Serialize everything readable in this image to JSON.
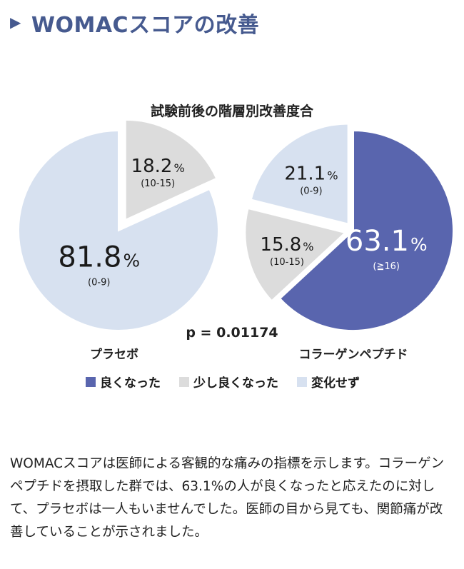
{
  "header": {
    "arrow": "▶",
    "title": "WOMACスコアの改善"
  },
  "chart_data": [
    {
      "type": "pie",
      "group_title": "試験前後の階層別改善度合",
      "p_value": "p = 0.01174",
      "charts": [
        {
          "name": "プラセボ",
          "slices": [
            {
              "category": "少し良くなった",
              "value": 18.2,
              "value_label": "18.2",
              "unit": "%",
              "range": "(10-15)",
              "exploded": true
            },
            {
              "category": "変化せず",
              "value": 81.8,
              "value_label": "81.8",
              "unit": "%",
              "range": "(0-9)",
              "exploded": false
            }
          ]
        },
        {
          "name": "コラーゲンペプチド",
          "slices": [
            {
              "category": "良くなった",
              "value": 63.1,
              "value_label": "63.1",
              "unit": "%",
              "range": "(≧16)",
              "exploded": false
            },
            {
              "category": "少し良くなった",
              "value": 15.8,
              "value_label": "15.8",
              "unit": "%",
              "range": "(10-15)",
              "exploded": true
            },
            {
              "category": "変化せず",
              "value": 21.1,
              "value_label": "21.1",
              "unit": "%",
              "range": "(0-9)",
              "exploded": true
            }
          ]
        }
      ]
    }
  ],
  "legend": [
    {
      "label": "良くなった",
      "color": "#5965ae"
    },
    {
      "label": "少し良くなった",
      "color": "#dcdcdc"
    },
    {
      "label": "変化せず",
      "color": "#d7e1f0"
    }
  ],
  "colors": {
    "良くなった": "#5965ae",
    "少し良くなった": "#dcdcdc",
    "変化せず": "#d7e1f0"
  },
  "paragraph": "WOMACスコアは医師による客観的な痛みの指標を示します。コラーゲンペプチドを摂取した群では、63.1%の人が良くなったと応えたのに対して、プラセボは一人もいませんでした。医師の目から見ても、関節痛が改善していることが示されました。"
}
